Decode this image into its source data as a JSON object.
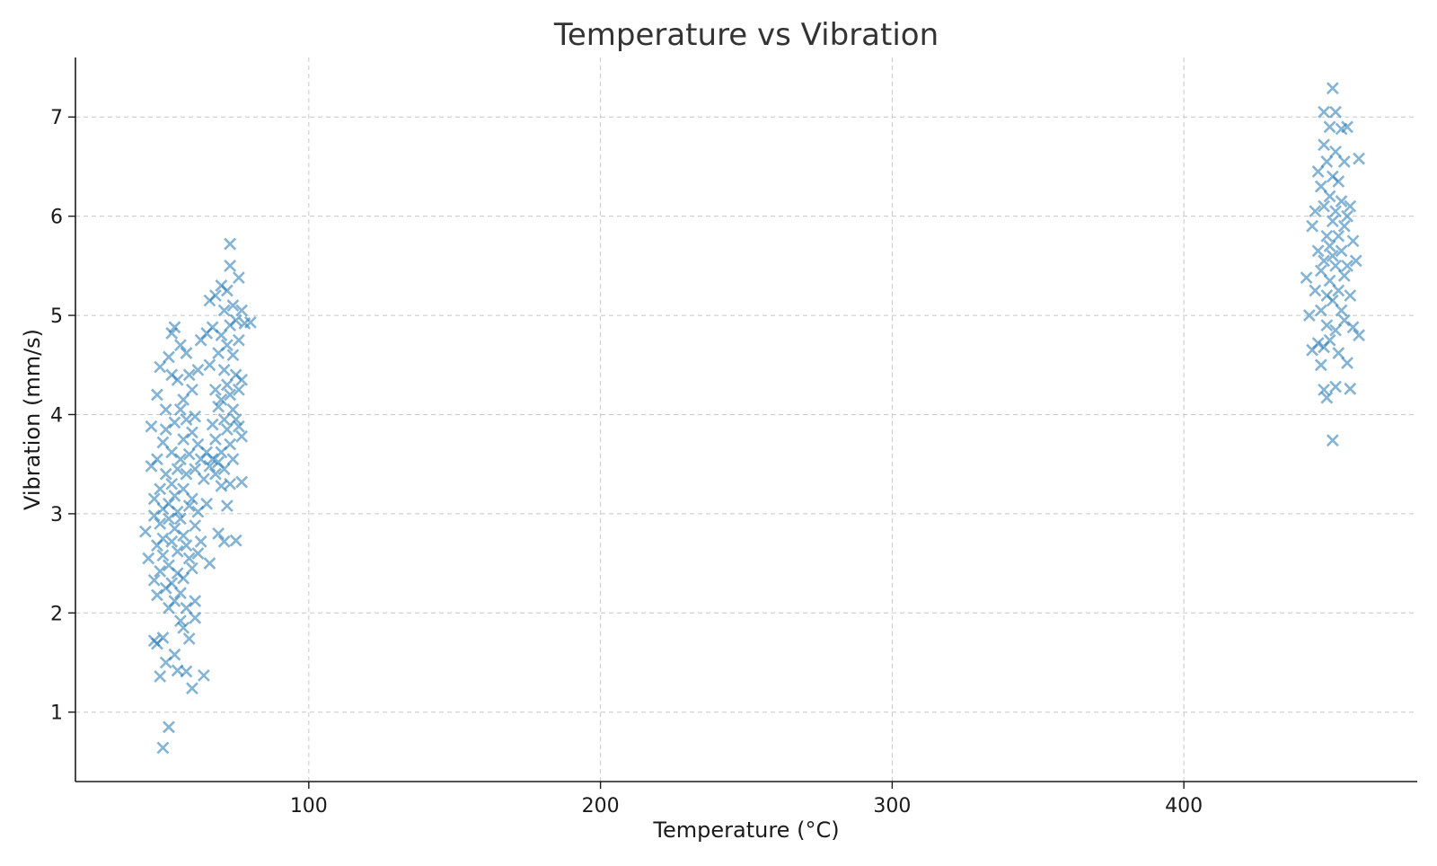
{
  "chart_data": {
    "type": "scatter",
    "title": "Temperature vs Vibration",
    "xlabel": "Temperature (°C)",
    "ylabel": "Vibration (mm/s)",
    "xlim": [
      20,
      480
    ],
    "ylim": [
      0.3,
      7.6
    ],
    "xticks": [
      100,
      200,
      300,
      400
    ],
    "yticks": [
      1,
      2,
      3,
      4,
      5,
      6,
      7
    ],
    "grid": true,
    "legend": "none",
    "marker": "x",
    "color": "#1f77b4",
    "opacity": 0.55,
    "series": [
      {
        "points": [
          [
            44,
            2.82
          ],
          [
            45,
            2.55
          ],
          [
            46,
            3.48
          ],
          [
            46,
            3.88
          ],
          [
            47,
            2.98
          ],
          [
            47,
            2.33
          ],
          [
            47,
            3.15
          ],
          [
            47,
            1.72
          ],
          [
            48,
            4.2
          ],
          [
            48,
            2.68
          ],
          [
            48,
            2.18
          ],
          [
            48,
            3.55
          ],
          [
            48,
            1.69
          ],
          [
            49,
            4.48
          ],
          [
            49,
            3.25
          ],
          [
            49,
            2.9
          ],
          [
            49,
            2.42
          ],
          [
            49,
            1.36
          ],
          [
            50,
            3.72
          ],
          [
            50,
            2.75
          ],
          [
            50,
            3.05
          ],
          [
            50,
            2.58
          ],
          [
            50,
            1.75
          ],
          [
            50,
            0.64
          ],
          [
            51,
            4.05
          ],
          [
            51,
            3.4
          ],
          [
            51,
            2.25
          ],
          [
            51,
            3.85
          ],
          [
            51,
            1.5
          ],
          [
            52,
            4.58
          ],
          [
            52,
            3.1
          ],
          [
            52,
            2.95
          ],
          [
            52,
            2.48
          ],
          [
            52,
            2.05
          ],
          [
            52,
            0.85
          ],
          [
            53,
            4.82
          ],
          [
            53,
            3.62
          ],
          [
            53,
            3.3
          ],
          [
            53,
            2.72
          ],
          [
            53,
            2.3
          ],
          [
            53,
            4.4
          ],
          [
            54,
            4.88
          ],
          [
            54,
            3.92
          ],
          [
            54,
            3.18
          ],
          [
            54,
            2.85
          ],
          [
            54,
            2.12
          ],
          [
            54,
            1.58
          ],
          [
            55,
            4.35
          ],
          [
            55,
            3.45
          ],
          [
            55,
            3.02
          ],
          [
            55,
            2.62
          ],
          [
            55,
            2.4
          ],
          [
            55,
            1.42
          ],
          [
            56,
            4.7
          ],
          [
            56,
            4.05
          ],
          [
            56,
            3.55
          ],
          [
            56,
            2.95
          ],
          [
            56,
            2.2
          ],
          [
            56,
            1.92
          ],
          [
            57,
            4.15
          ],
          [
            57,
            3.75
          ],
          [
            57,
            3.25
          ],
          [
            57,
            2.78
          ],
          [
            57,
            2.35
          ],
          [
            57,
            1.85
          ],
          [
            58,
            4.62
          ],
          [
            58,
            3.95
          ],
          [
            58,
            3.4
          ],
          [
            58,
            2.68
          ],
          [
            58,
            2.05
          ],
          [
            58,
            1.41
          ],
          [
            59,
            4.4
          ],
          [
            59,
            3.6
          ],
          [
            59,
            3.08
          ],
          [
            59,
            2.55
          ],
          [
            59,
            1.74
          ],
          [
            60,
            4.25
          ],
          [
            60,
            3.82
          ],
          [
            60,
            3.15
          ],
          [
            60,
            2.45
          ],
          [
            60,
            1.24
          ],
          [
            61,
            3.98
          ],
          [
            61,
            3.45
          ],
          [
            61,
            2.88
          ],
          [
            61,
            2.12
          ],
          [
            61,
            1.95
          ],
          [
            62,
            4.45
          ],
          [
            62,
            3.7
          ],
          [
            62,
            3.02
          ],
          [
            62,
            2.6
          ],
          [
            63,
            4.75
          ],
          [
            63,
            3.55
          ],
          [
            63,
            2.72
          ],
          [
            64,
            3.35
          ],
          [
            64,
            1.37
          ],
          [
            65,
            4.82
          ],
          [
            65,
            3.62
          ],
          [
            65,
            3.1
          ],
          [
            66,
            5.15
          ],
          [
            66,
            4.5
          ],
          [
            66,
            3.48
          ],
          [
            66,
            2.5
          ],
          [
            67,
            4.88
          ],
          [
            67,
            3.9
          ],
          [
            67,
            3.55
          ],
          [
            68,
            5.2
          ],
          [
            68,
            4.25
          ],
          [
            68,
            3.75
          ],
          [
            68,
            3.4
          ],
          [
            69,
            4.62
          ],
          [
            69,
            4.08
          ],
          [
            69,
            3.52
          ],
          [
            69,
            2.8
          ],
          [
            70,
            5.3
          ],
          [
            70,
            4.8
          ],
          [
            70,
            4.15
          ],
          [
            70,
            3.62
          ],
          [
            70,
            3.28
          ],
          [
            71,
            5.05
          ],
          [
            71,
            4.45
          ],
          [
            71,
            3.95
          ],
          [
            71,
            3.45
          ],
          [
            71,
            2.72
          ],
          [
            72,
            5.25
          ],
          [
            72,
            4.7
          ],
          [
            72,
            4.3
          ],
          [
            72,
            3.85
          ],
          [
            72,
            3.08
          ],
          [
            73,
            5.72
          ],
          [
            73,
            5.5
          ],
          [
            73,
            4.9
          ],
          [
            73,
            4.2
          ],
          [
            73,
            3.7
          ],
          [
            73,
            3.3
          ],
          [
            74,
            5.1
          ],
          [
            74,
            4.6
          ],
          [
            74,
            4.05
          ],
          [
            74,
            3.55
          ],
          [
            75,
            4.95
          ],
          [
            75,
            4.4
          ],
          [
            75,
            3.95
          ],
          [
            75,
            2.73
          ],
          [
            76,
            5.38
          ],
          [
            76,
            4.75
          ],
          [
            76,
            4.25
          ],
          [
            76,
            3.88
          ],
          [
            77,
            5.05
          ],
          [
            77,
            4.35
          ],
          [
            77,
            3.78
          ],
          [
            77,
            3.32
          ],
          [
            78,
            4.92
          ],
          [
            80,
            4.93
          ]
        ]
      },
      {
        "points": [
          [
            442,
            5.38
          ],
          [
            443,
            5.0
          ],
          [
            444,
            4.65
          ],
          [
            444,
            5.9
          ],
          [
            445,
            6.05
          ],
          [
            445,
            5.25
          ],
          [
            446,
            6.45
          ],
          [
            446,
            5.65
          ],
          [
            446,
            4.72
          ],
          [
            447,
            6.3
          ],
          [
            447,
            5.45
          ],
          [
            447,
            5.05
          ],
          [
            447,
            4.5
          ],
          [
            448,
            7.05
          ],
          [
            448,
            6.72
          ],
          [
            448,
            6.1
          ],
          [
            448,
            5.55
          ],
          [
            448,
            4.68
          ],
          [
            448,
            4.25
          ],
          [
            449,
            6.55
          ],
          [
            449,
            5.8
          ],
          [
            449,
            5.2
          ],
          [
            449,
            4.9
          ],
          [
            449,
            4.17
          ],
          [
            450,
            6.9
          ],
          [
            450,
            6.2
          ],
          [
            450,
            5.7
          ],
          [
            450,
            5.35
          ],
          [
            450,
            4.75
          ],
          [
            451,
            7.29
          ],
          [
            451,
            6.4
          ],
          [
            451,
            5.95
          ],
          [
            451,
            5.6
          ],
          [
            451,
            5.15
          ],
          [
            451,
            3.74
          ],
          [
            452,
            7.05
          ],
          [
            452,
            6.65
          ],
          [
            452,
            6.05
          ],
          [
            452,
            5.5
          ],
          [
            452,
            4.85
          ],
          [
            452,
            4.28
          ],
          [
            453,
            6.35
          ],
          [
            453,
            5.8
          ],
          [
            453,
            5.25
          ],
          [
            453,
            4.62
          ],
          [
            454,
            6.88
          ],
          [
            454,
            6.15
          ],
          [
            454,
            5.65
          ],
          [
            454,
            5.05
          ],
          [
            455,
            6.55
          ],
          [
            455,
            5.9
          ],
          [
            455,
            5.4
          ],
          [
            455,
            4.95
          ],
          [
            456,
            6.9
          ],
          [
            456,
            6.0
          ],
          [
            456,
            5.5
          ],
          [
            456,
            4.52
          ],
          [
            457,
            6.1
          ],
          [
            457,
            5.2
          ],
          [
            457,
            4.26
          ],
          [
            458,
            5.75
          ],
          [
            458,
            4.88
          ],
          [
            459,
            5.55
          ],
          [
            460,
            6.58
          ],
          [
            460,
            4.8
          ]
        ]
      }
    ]
  }
}
